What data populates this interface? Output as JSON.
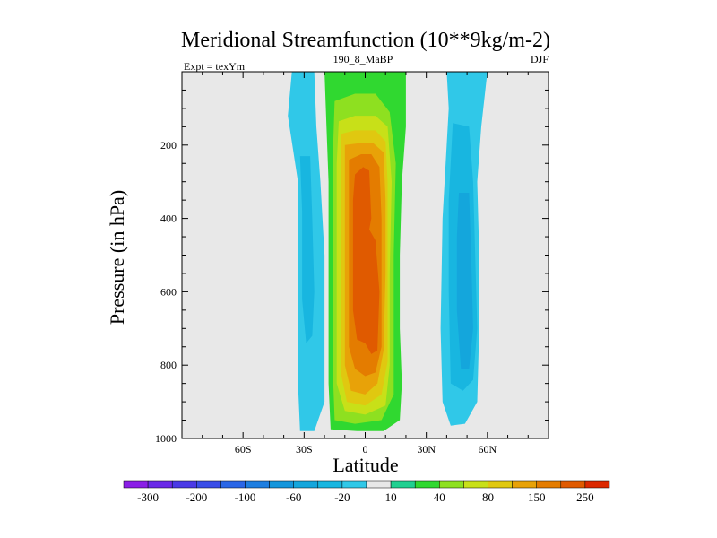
{
  "chart_data": {
    "type": "heatmap",
    "title": "Meridional Streamfunction (10**9kg/m-2)",
    "left_string": "Expt = texYm",
    "center_string": "190_8_MaBP",
    "right_string": "DJF",
    "xlabel": "Latitude",
    "ylabel": "Pressure (in hPa)",
    "xlim": [
      -90,
      90
    ],
    "ylim": [
      1000,
      0
    ],
    "x_ticks": [
      {
        "value": -60,
        "label": "60S"
      },
      {
        "value": -30,
        "label": "30S"
      },
      {
        "value": 0,
        "label": "0"
      },
      {
        "value": 30,
        "label": "30N"
      },
      {
        "value": 60,
        "label": "60N"
      }
    ],
    "y_ticks": [
      {
        "value": 200,
        "label": "200"
      },
      {
        "value": 400,
        "label": "400"
      },
      {
        "value": 600,
        "label": "600"
      },
      {
        "value": 800,
        "label": "800"
      },
      {
        "value": 1000,
        "label": "1000"
      }
    ],
    "missing_color": "#e8e8e8",
    "colorbar": {
      "levels": [
        -300,
        -250,
        -200,
        -150,
        -100,
        -80,
        -60,
        -40,
        -20,
        -10,
        10,
        20,
        40,
        60,
        80,
        100,
        150,
        200,
        250
      ],
      "labels": [
        "-300",
        "-200",
        "-100",
        "-60",
        "-20",
        "10",
        "40",
        "80",
        "150",
        "250"
      ],
      "colors": [
        "#8a1ee6",
        "#6a2ae8",
        "#4b3ae6",
        "#3a4ee8",
        "#2a66e6",
        "#1e7ee0",
        "#1496dc",
        "#14a6dc",
        "#18b6e0",
        "#30c8e8",
        "#e8e8e8",
        "#20d090",
        "#30d830",
        "#8ee020",
        "#c8e018",
        "#e0c810",
        "#e8a208",
        "#e47c00",
        "#e05a00",
        "#dc2800"
      ]
    },
    "regions": [
      {
        "c": 9,
        "pts": [
          [
            -35,
            0
          ],
          [
            -25,
            0
          ],
          [
            -24,
            150
          ],
          [
            -22,
            300
          ],
          [
            -20,
            500
          ],
          [
            -20,
            700
          ],
          [
            -20,
            900
          ],
          [
            -25,
            980
          ],
          [
            -32,
            980
          ],
          [
            -33,
            850
          ],
          [
            -33,
            500
          ],
          [
            -33,
            300
          ],
          [
            -38,
            120
          ],
          [
            -36,
            0
          ]
        ]
      },
      {
        "c": 8,
        "pts": [
          [
            -32,
            230
          ],
          [
            -27,
            230
          ],
          [
            -26,
            400
          ],
          [
            -25,
            600
          ],
          [
            -26,
            720
          ],
          [
            -29,
            740
          ],
          [
            -31,
            620
          ],
          [
            -31,
            380
          ]
        ]
      },
      {
        "c": 9,
        "pts": [
          [
            40,
            0
          ],
          [
            60,
            0
          ],
          [
            57,
            150
          ],
          [
            55,
            300
          ],
          [
            56,
            500
          ],
          [
            56,
            700
          ],
          [
            55,
            900
          ],
          [
            49,
            960
          ],
          [
            42,
            965
          ],
          [
            38,
            900
          ],
          [
            37,
            700
          ],
          [
            38,
            400
          ],
          [
            40,
            200
          ],
          [
            41,
            100
          ]
        ]
      },
      {
        "c": 8,
        "pts": [
          [
            43,
            140
          ],
          [
            51,
            150
          ],
          [
            53,
            300
          ],
          [
            54,
            500
          ],
          [
            55,
            700
          ],
          [
            53,
            840
          ],
          [
            48,
            870
          ],
          [
            42,
            850
          ],
          [
            41,
            600
          ],
          [
            41,
            350
          ]
        ]
      },
      {
        "c": 7,
        "pts": [
          [
            46,
            330
          ],
          [
            51,
            330
          ],
          [
            52,
            500
          ],
          [
            53,
            700
          ],
          [
            51,
            810
          ],
          [
            47,
            810
          ],
          [
            45,
            650
          ],
          [
            45,
            450
          ]
        ]
      },
      {
        "c": 12,
        "pts": [
          [
            -20,
            0
          ],
          [
            20,
            0
          ],
          [
            20,
            150
          ],
          [
            18,
            300
          ],
          [
            17,
            500
          ],
          [
            17,
            700
          ],
          [
            18,
            850
          ],
          [
            17,
            950
          ],
          [
            9,
            980
          ],
          [
            -4,
            980
          ],
          [
            -17,
            975
          ],
          [
            -18,
            850
          ],
          [
            -18,
            500
          ],
          [
            -18,
            300
          ],
          [
            -19,
            150
          ]
        ]
      },
      {
        "c": 13,
        "pts": [
          [
            -15,
            80
          ],
          [
            -5,
            60
          ],
          [
            5,
            60
          ],
          [
            12,
            110
          ],
          [
            15,
            250
          ],
          [
            14,
            500
          ],
          [
            14,
            700
          ],
          [
            14,
            880
          ],
          [
            8,
            950
          ],
          [
            -5,
            960
          ],
          [
            -15,
            950
          ],
          [
            -16,
            800
          ],
          [
            -16,
            500
          ],
          [
            -16,
            250
          ]
        ]
      },
      {
        "c": 14,
        "pts": [
          [
            -13,
            135
          ],
          [
            -5,
            120
          ],
          [
            5,
            120
          ],
          [
            11,
            150
          ],
          [
            13,
            300
          ],
          [
            12,
            550
          ],
          [
            12,
            800
          ],
          [
            10,
            910
          ],
          [
            0,
            935
          ],
          [
            -10,
            925
          ],
          [
            -14,
            850
          ],
          [
            -14,
            500
          ],
          [
            -14,
            250
          ]
        ]
      },
      {
        "c": 15,
        "pts": [
          [
            -12,
            170
          ],
          [
            -5,
            160
          ],
          [
            5,
            160
          ],
          [
            10,
            190
          ],
          [
            11,
            300
          ],
          [
            11,
            550
          ],
          [
            11,
            790
          ],
          [
            8,
            880
          ],
          [
            0,
            910
          ],
          [
            -9,
            900
          ],
          [
            -12,
            820
          ],
          [
            -12,
            500
          ],
          [
            -12,
            250
          ]
        ]
      },
      {
        "c": 16,
        "pts": [
          [
            -10,
            200
          ],
          [
            -3,
            195
          ],
          [
            4,
            195
          ],
          [
            9,
            220
          ],
          [
            10,
            350
          ],
          [
            10,
            550
          ],
          [
            9,
            760
          ],
          [
            6,
            850
          ],
          [
            0,
            880
          ],
          [
            -7,
            870
          ],
          [
            -10,
            800
          ],
          [
            -10,
            500
          ],
          [
            -10,
            300
          ]
        ]
      },
      {
        "c": 17,
        "pts": [
          [
            -8,
            240
          ],
          [
            -2,
            225
          ],
          [
            3,
            225
          ],
          [
            7,
            260
          ],
          [
            8,
            400
          ],
          [
            8,
            600
          ],
          [
            8,
            750
          ],
          [
            5,
            820
          ],
          [
            0,
            830
          ],
          [
            -5,
            810
          ],
          [
            -8,
            750
          ],
          [
            -8,
            500
          ],
          [
            -8,
            350
          ]
        ]
      },
      {
        "c": 18,
        "pts": [
          [
            -5,
            280
          ],
          [
            -1,
            260
          ],
          [
            2,
            270
          ],
          [
            3,
            400
          ],
          [
            2,
            430
          ],
          [
            5,
            460
          ],
          [
            7,
            600
          ],
          [
            6,
            760
          ],
          [
            3,
            770
          ],
          [
            0,
            740
          ],
          [
            -4,
            730
          ],
          [
            -6,
            650
          ],
          [
            -6,
            450
          ],
          [
            -6,
            350
          ]
        ]
      }
    ]
  }
}
